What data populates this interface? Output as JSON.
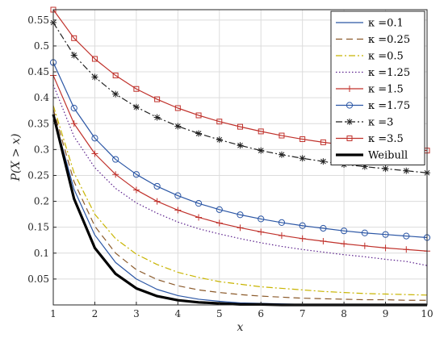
{
  "chart_data": {
    "type": "line",
    "title": "",
    "xlabel": "x",
    "ylabel": "P(X > x)",
    "xlim": [
      1,
      10
    ],
    "ylim": [
      0,
      0.57
    ],
    "xticks": [
      "1",
      "2",
      "3",
      "4",
      "5",
      "6",
      "7",
      "8",
      "9",
      "10"
    ],
    "yticks": [
      "0.05",
      "0.1",
      "0.15",
      "0.2",
      "0.25",
      "0.3",
      "0.35",
      "0.4",
      "0.45",
      "0.5",
      "0.55"
    ],
    "grid": true,
    "legend_position": "top-right",
    "x": [
      1,
      1.5,
      2,
      2.5,
      3,
      3.5,
      4,
      4.5,
      5,
      5.5,
      6,
      6.5,
      7,
      7.5,
      8,
      8.5,
      9,
      9.5,
      10
    ],
    "series": [
      {
        "name": "κ =0.1",
        "color": "#2b56a5",
        "style": "solid",
        "marker": "none",
        "values": [
          0.368,
          0.223,
          0.135,
          0.082,
          0.05,
          0.03,
          0.018,
          0.011,
          0.007,
          0.004,
          0.003,
          0.002,
          0.001,
          0.001,
          0.001,
          0.0,
          0.0,
          0.0,
          0.0
        ]
      },
      {
        "name": "κ =0.25",
        "color": "#8b5a2b",
        "style": "dashed",
        "marker": "none",
        "values": [
          0.378,
          0.238,
          0.152,
          0.1,
          0.068,
          0.049,
          0.037,
          0.029,
          0.024,
          0.02,
          0.017,
          0.015,
          0.013,
          0.012,
          0.011,
          0.01,
          0.01,
          0.009,
          0.009
        ]
      },
      {
        "name": "κ =0.5",
        "color": "#c8b400",
        "style": "dashdot",
        "marker": "none",
        "values": [
          0.385,
          0.255,
          0.175,
          0.128,
          0.098,
          0.078,
          0.063,
          0.053,
          0.045,
          0.04,
          0.035,
          0.032,
          0.029,
          0.026,
          0.024,
          0.022,
          0.021,
          0.02,
          0.019
        ]
      },
      {
        "name": "κ =1.25",
        "color": "#5a1f8c",
        "style": "dotted",
        "marker": "none",
        "values": [
          0.425,
          0.325,
          0.265,
          0.225,
          0.197,
          0.177,
          0.16,
          0.147,
          0.137,
          0.128,
          0.12,
          0.113,
          0.107,
          0.102,
          0.097,
          0.093,
          0.088,
          0.084,
          0.076
        ]
      },
      {
        "name": "κ =1.5",
        "color": "#c0312b",
        "style": "solid",
        "marker": "plus",
        "values": [
          0.443,
          0.35,
          0.292,
          0.252,
          0.222,
          0.2,
          0.183,
          0.169,
          0.158,
          0.149,
          0.141,
          0.134,
          0.128,
          0.123,
          0.118,
          0.114,
          0.11,
          0.107,
          0.104
        ]
      },
      {
        "name": "κ =1.75",
        "color": "#2b56a5",
        "style": "solid",
        "marker": "circle",
        "values": [
          0.468,
          0.38,
          0.322,
          0.281,
          0.252,
          0.229,
          0.211,
          0.196,
          0.184,
          0.174,
          0.166,
          0.159,
          0.153,
          0.148,
          0.143,
          0.139,
          0.136,
          0.133,
          0.13
        ]
      },
      {
        "name": "κ =3",
        "color": "#222222",
        "style": "dashdot",
        "marker": "asterisk",
        "values": [
          0.545,
          0.482,
          0.44,
          0.407,
          0.382,
          0.362,
          0.345,
          0.331,
          0.319,
          0.308,
          0.298,
          0.29,
          0.283,
          0.277,
          0.271,
          0.267,
          0.263,
          0.259,
          0.255
        ]
      },
      {
        "name": "κ =3.5",
        "color": "#c0312b",
        "style": "solid",
        "marker": "square",
        "values": [
          0.57,
          0.515,
          0.475,
          0.443,
          0.417,
          0.397,
          0.38,
          0.366,
          0.354,
          0.344,
          0.335,
          0.327,
          0.32,
          0.314,
          0.309,
          0.305,
          0.302,
          0.3,
          0.298
        ]
      },
      {
        "name": "Weibull",
        "color": "#000000",
        "style": "solid-thick",
        "marker": "none",
        "values": [
          0.368,
          0.205,
          0.11,
          0.06,
          0.032,
          0.017,
          0.009,
          0.005,
          0.003,
          0.001,
          0.001,
          0.0,
          0.0,
          0.0,
          0.0,
          0.0,
          0.0,
          0.0,
          0.0
        ]
      }
    ]
  }
}
